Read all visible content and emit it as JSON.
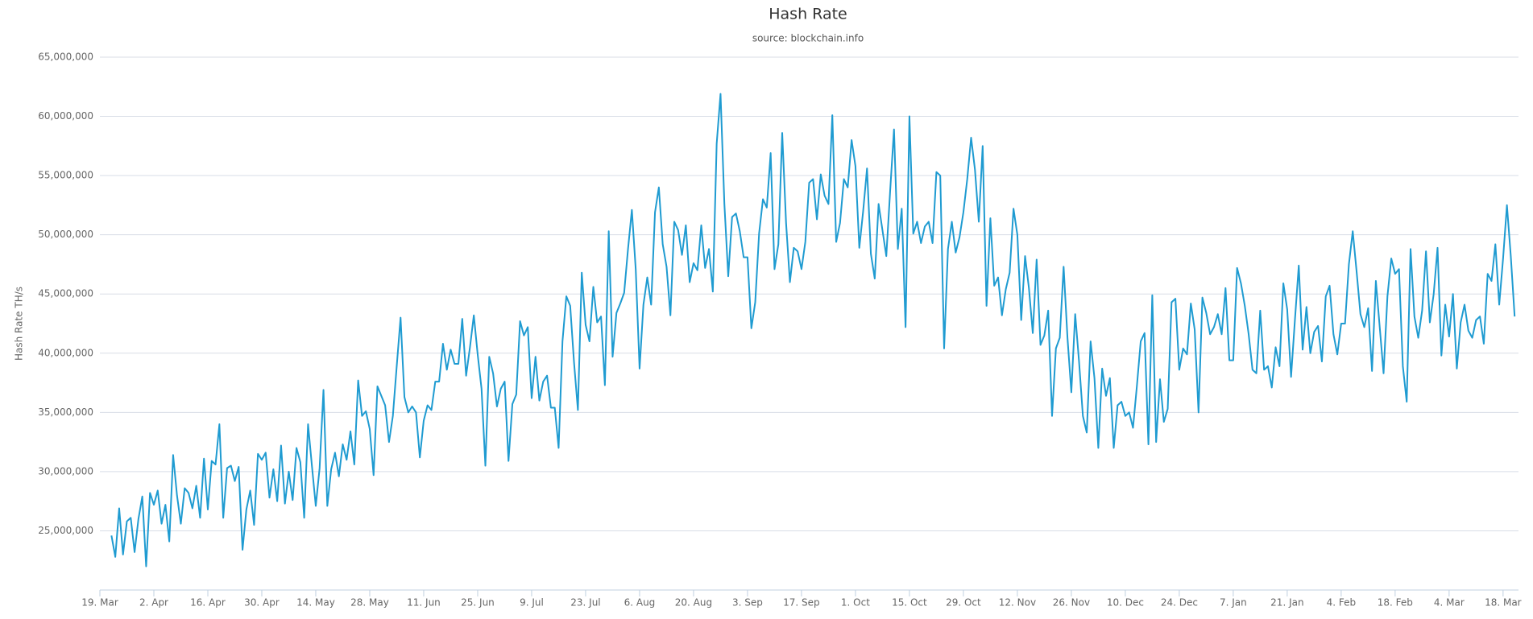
{
  "chart_data": {
    "type": "line",
    "title": "Hash Rate",
    "subtitle": "source: blockchain.info",
    "ylabel": "Hash Rate TH/s",
    "color": "#1f9bd1",
    "grid": true,
    "xlim": [
      0,
      368
    ],
    "xticks": [
      {
        "value": 0,
        "label": "19. Mar"
      },
      {
        "value": 14,
        "label": "2. Apr"
      },
      {
        "value": 28,
        "label": "16. Apr"
      },
      {
        "value": 42,
        "label": "30. Apr"
      },
      {
        "value": 56,
        "label": "14. May"
      },
      {
        "value": 70,
        "label": "28. May"
      },
      {
        "value": 84,
        "label": "11. Jun"
      },
      {
        "value": 98,
        "label": "25. Jun"
      },
      {
        "value": 112,
        "label": "9. Jul"
      },
      {
        "value": 126,
        "label": "23. Jul"
      },
      {
        "value": 140,
        "label": "6. Aug"
      },
      {
        "value": 154,
        "label": "20. Aug"
      },
      {
        "value": 168,
        "label": "3. Sep"
      },
      {
        "value": 182,
        "label": "17. Sep"
      },
      {
        "value": 196,
        "label": "1. Oct"
      },
      {
        "value": 210,
        "label": "15. Oct"
      },
      {
        "value": 224,
        "label": "29. Oct"
      },
      {
        "value": 238,
        "label": "12. Nov"
      },
      {
        "value": 252,
        "label": "26. Nov"
      },
      {
        "value": 266,
        "label": "10. Dec"
      },
      {
        "value": 280,
        "label": "24. Dec"
      },
      {
        "value": 294,
        "label": "7. Jan"
      },
      {
        "value": 308,
        "label": "21. Jan"
      },
      {
        "value": 322,
        "label": "4. Feb"
      },
      {
        "value": 336,
        "label": "18. Feb"
      },
      {
        "value": 350,
        "label": "4. Mar"
      },
      {
        "value": 364,
        "label": "18. Mar"
      }
    ],
    "ylim": [
      20000000,
      65000000
    ],
    "yticks": [
      {
        "value": 25000000,
        "label": "25,000,000"
      },
      {
        "value": 30000000,
        "label": "30,000,000"
      },
      {
        "value": 35000000,
        "label": "35,000,000"
      },
      {
        "value": 40000000,
        "label": "40,000,000"
      },
      {
        "value": 45000000,
        "label": "45,000,000"
      },
      {
        "value": 50000000,
        "label": "50,000,000"
      },
      {
        "value": 55000000,
        "label": "55,000,000"
      },
      {
        "value": 60000000,
        "label": "60,000,000"
      },
      {
        "value": 65000000,
        "label": "65,000,000"
      }
    ],
    "values": [
      null,
      null,
      null,
      24600000,
      22800000,
      26900000,
      23000000,
      25800000,
      26100000,
      23200000,
      26000000,
      27900000,
      22000000,
      28200000,
      27200000,
      28400000,
      25600000,
      27200000,
      24100000,
      31400000,
      28000000,
      25600000,
      28600000,
      28200000,
      26900000,
      28800000,
      26100000,
      31100000,
      26800000,
      30900000,
      30600000,
      34000000,
      26100000,
      30300000,
      30500000,
      29200000,
      30400000,
      23400000,
      26800000,
      28400000,
      25500000,
      31500000,
      31000000,
      31600000,
      27800000,
      30200000,
      27500000,
      32200000,
      27300000,
      30000000,
      27600000,
      32000000,
      30800000,
      26100000,
      34000000,
      30500000,
      27100000,
      30300000,
      36900000,
      27100000,
      30200000,
      31600000,
      29600000,
      32300000,
      31000000,
      33400000,
      30600000,
      37700000,
      34700000,
      35100000,
      33600000,
      29700000,
      37200000,
      36400000,
      35600000,
      32500000,
      34700000,
      38900000,
      43000000,
      36300000,
      35000000,
      35500000,
      35000000,
      31200000,
      34300000,
      35600000,
      35200000,
      37600000,
      37600000,
      40800000,
      38600000,
      40300000,
      39100000,
      39100000,
      42900000,
      38100000,
      40500000,
      43200000,
      39900000,
      37000000,
      30500000,
      39700000,
      38300000,
      35500000,
      37000000,
      37600000,
      30900000,
      35700000,
      36500000,
      42700000,
      41500000,
      42200000,
      36200000,
      39700000,
      36000000,
      37600000,
      38100000,
      35400000,
      35400000,
      32000000,
      41000000,
      44800000,
      44000000,
      39200000,
      35200000,
      46800000,
      42400000,
      41000000,
      45600000,
      42600000,
      43100000,
      37300000,
      50300000,
      39700000,
      43400000,
      44200000,
      45100000,
      48800000,
      52100000,
      47100000,
      38700000,
      44100000,
      46400000,
      44100000,
      51900000,
      54000000,
      49200000,
      47300000,
      43200000,
      51100000,
      50400000,
      48300000,
      50800000,
      46000000,
      47600000,
      47000000,
      50800000,
      47200000,
      48800000,
      45200000,
      57700000,
      61900000,
      52600000,
      46500000,
      51500000,
      51800000,
      50300000,
      48100000,
      48100000,
      42100000,
      44300000,
      50100000,
      53000000,
      52300000,
      56900000,
      47100000,
      49200000,
      58600000,
      51000000,
      46000000,
      48900000,
      48600000,
      47100000,
      49400000,
      54400000,
      54700000,
      51300000,
      55100000,
      53300000,
      52600000,
      60100000,
      49400000,
      51000000,
      54700000,
      54000000,
      58000000,
      55800000,
      48900000,
      52000000,
      55600000,
      48400000,
      46300000,
      52600000,
      50400000,
      48200000,
      53700000,
      58900000,
      48800000,
      52200000,
      42200000,
      60000000,
      50100000,
      51100000,
      49300000,
      50700000,
      51100000,
      49300000,
      55300000,
      55000000,
      40400000,
      48800000,
      51100000,
      48500000,
      49800000,
      51900000,
      54700000,
      58200000,
      55500000,
      51100000,
      57500000,
      44000000,
      51400000,
      45700000,
      46400000,
      43200000,
      45400000,
      46800000,
      52200000,
      50000000,
      42800000,
      48200000,
      45500000,
      41700000,
      47900000,
      40700000,
      41500000,
      43600000,
      34700000,
      40400000,
      41300000,
      47300000,
      41300000,
      36700000,
      43300000,
      39300000,
      34700000,
      33300000,
      41000000,
      37900000,
      32000000,
      38700000,
      36400000,
      37900000,
      32000000,
      35600000,
      35900000,
      34700000,
      35000000,
      33700000,
      37200000,
      41000000,
      41700000,
      32300000,
      44900000,
      32500000,
      37800000,
      34200000,
      35300000,
      44300000,
      44600000,
      38600000,
      40400000,
      39900000,
      44200000,
      42000000,
      35000000,
      44700000,
      43400000,
      41600000,
      42200000,
      43300000,
      41600000,
      45500000,
      39400000,
      39400000,
      47200000,
      45900000,
      44000000,
      41600000,
      38600000,
      38300000,
      43600000,
      38600000,
      38900000,
      37100000,
      40500000,
      38900000,
      45900000,
      43700000,
      38000000,
      42800000,
      47400000,
      40300000,
      43900000,
      40000000,
      41800000,
      42300000,
      39300000,
      44800000,
      45700000,
      41600000,
      39900000,
      42500000,
      42500000,
      47500000,
      50300000,
      46900000,
      43300000,
      42200000,
      43800000,
      38500000,
      46100000,
      42200000,
      38300000,
      44800000,
      48000000,
      46700000,
      47100000,
      38900000,
      35900000,
      48800000,
      43100000,
      41300000,
      43600000,
      48600000,
      42600000,
      45000000,
      48900000,
      39800000,
      44100000,
      41400000,
      45000000,
      38700000,
      42600000,
      44100000,
      41900000,
      41300000,
      42800000,
      43100000,
      40800000,
      46700000,
      46100000,
      49200000,
      44100000,
      48000000,
      52500000,
      48200000,
      43100000
    ]
  }
}
